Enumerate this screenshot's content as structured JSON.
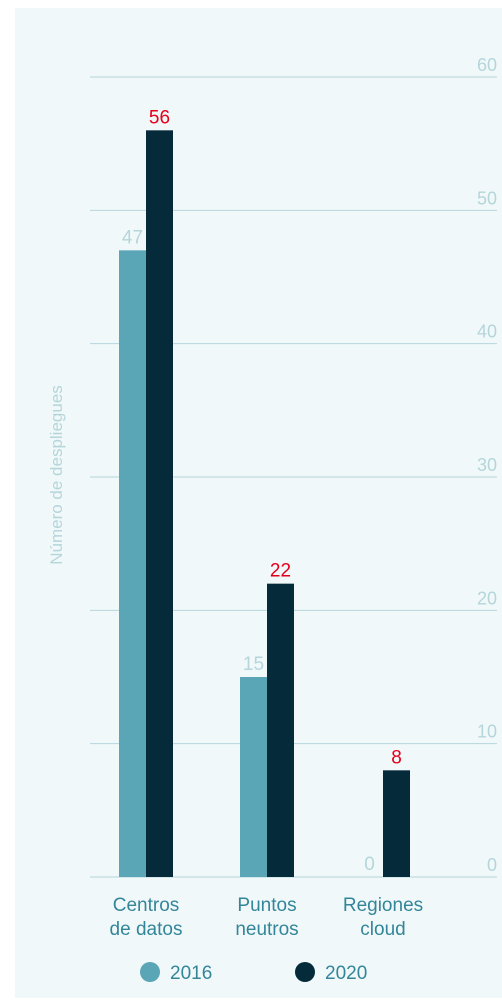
{
  "chart_data": {
    "type": "bar",
    "categories": [
      [
        "Centros",
        "de datos"
      ],
      [
        "Puntos",
        "neutros"
      ],
      [
        "Regiones",
        "cloud"
      ]
    ],
    "series": [
      {
        "name": "2016",
        "values": [
          47,
          15,
          0
        ],
        "color": "#5aa5b6",
        "label_color": "#b4d6db"
      },
      {
        "name": "2020",
        "values": [
          56,
          22,
          8
        ],
        "color": "#052a3a",
        "label_color": "#e3001b"
      }
    ],
    "ylabel": "Número de despliegues",
    "ylim": [
      0,
      60
    ],
    "yticks": [
      0,
      10,
      20,
      30,
      40,
      50,
      60
    ],
    "grid": true,
    "legend_position": "bottom",
    "colors": {
      "grid": "#b4d6db",
      "tick_label": "#b4d6db",
      "axis_label": "#b4d6db",
      "category_label": "#33869a"
    }
  }
}
